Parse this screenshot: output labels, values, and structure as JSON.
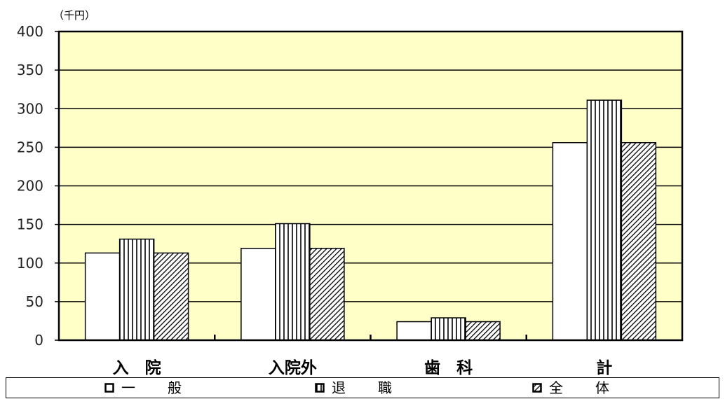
{
  "chart_data": {
    "type": "bar",
    "unit_label": "（千円）",
    "categories": [
      "入　院",
      "入院外",
      "歯　科",
      "計"
    ],
    "ylim": [
      0,
      400
    ],
    "yticks": [
      0,
      50,
      100,
      150,
      200,
      250,
      300,
      350,
      400
    ],
    "grid": true,
    "plot_background": "#FFFFC8",
    "legend_position": "bottom",
    "series": [
      {
        "name": "一　　般",
        "pattern": "blank",
        "values": [
          113,
          119,
          24,
          256
        ]
      },
      {
        "name": "退　　職",
        "pattern": "vertical-lines",
        "values": [
          131,
          151,
          29,
          311
        ]
      },
      {
        "name": "全　　体",
        "pattern": "diagonal-hatch",
        "values": [
          113,
          119,
          24,
          256
        ]
      }
    ]
  }
}
